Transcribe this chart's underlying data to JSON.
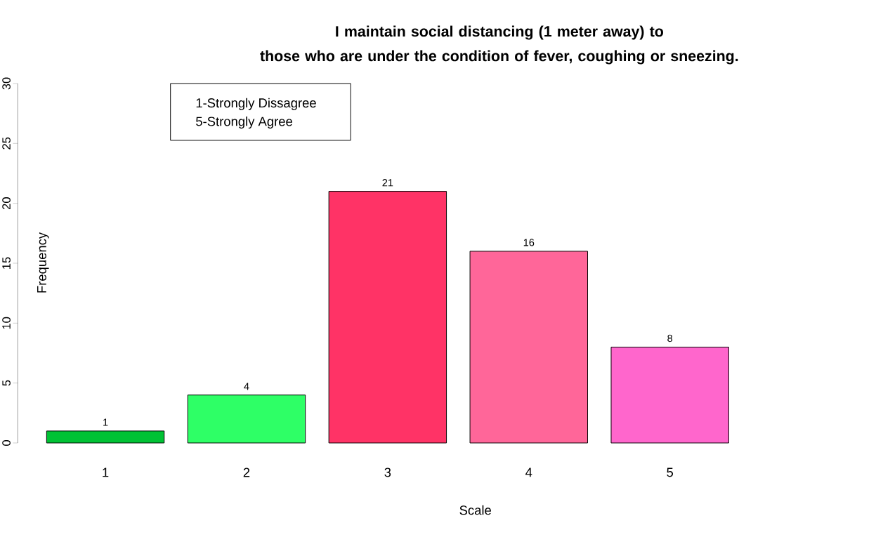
{
  "chart_data": {
    "type": "bar",
    "title": "I maintain social distancing (1 meter away) to\nthose who are under the condition of fever, coughing or sneezing.",
    "xlabel": "Scale",
    "ylabel": "Frequency",
    "categories": [
      "1",
      "2",
      "3",
      "4",
      "5"
    ],
    "values": [
      1,
      4,
      21,
      16,
      8
    ],
    "colors": [
      "#00c234",
      "#2eff66",
      "#ff3366",
      "#ff6699",
      "#ff66cc"
    ],
    "ylim": [
      0,
      30
    ],
    "yticks": [
      0,
      5,
      10,
      15,
      20,
      25,
      30
    ],
    "data_labels": true,
    "grid": false,
    "annotations": [
      "1-Strongly Dissagree",
      "5-Strongly Agree"
    ]
  }
}
